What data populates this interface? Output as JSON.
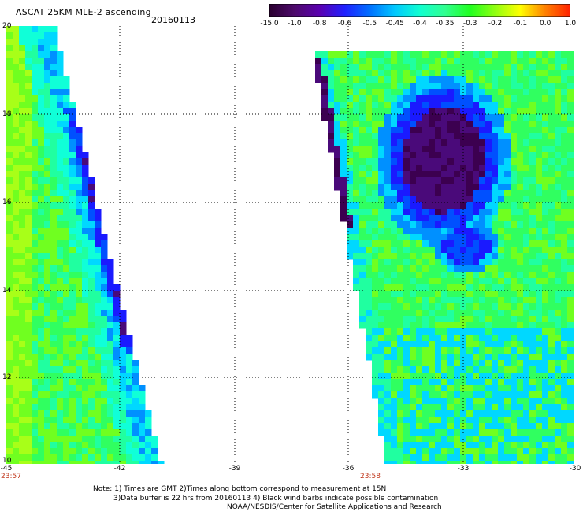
{
  "header": {
    "title": "ASCAT 25KM MLE-2 ascending",
    "date": "20160113"
  },
  "colorbar": {
    "labels": [
      "-15.0",
      "-1.0",
      "-0.8",
      "-0.6",
      "-0.5",
      "-0.45",
      "-0.4",
      "-0.35",
      "-0.3",
      "-0.2",
      "-0.1",
      "0.0",
      "1.0"
    ],
    "colors": [
      "#2a0030",
      "#4d0a6b",
      "#5a00b0",
      "#2020ff",
      "#0070ff",
      "#00c8ff",
      "#10ffd0",
      "#30ff90",
      "#20ff20",
      "#90ff10",
      "#ffff00",
      "#ff8000",
      "#ff2000"
    ]
  },
  "map": {
    "y_ticks": [
      "20",
      "18",
      "16",
      "14",
      "12",
      "10"
    ],
    "x_ticks": [
      "-45",
      "-42",
      "-39",
      "-36",
      "-33",
      "-30"
    ],
    "swath_times": [
      "23:57",
      "23:58"
    ]
  },
  "notes": {
    "line1": "Note: 1) Times are GMT 2)Times along bottom correspond to measurement at 15N",
    "line2": "3)Data buffer is 22 hrs from 20160113 4) Black wind barbs indicate possible contamination",
    "line3": "NOAA/NESDIS/Center for Satellite Applications and Research"
  }
}
